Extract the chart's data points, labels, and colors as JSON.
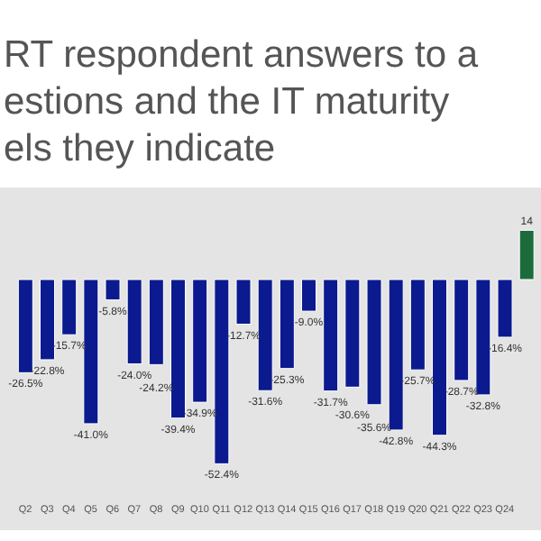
{
  "chart_data": {
    "type": "bar",
    "title": "RT respondent answers to a\nestions and the IT maturity\nels they indicate",
    "categories": [
      "Q2",
      "Q3",
      "Q4",
      "Q5",
      "Q6",
      "Q7",
      "Q8",
      "Q9",
      "Q10",
      "Q11",
      "Q12",
      "Q13",
      "Q14",
      "Q15",
      "Q16",
      "Q17",
      "Q18",
      "Q19",
      "Q20",
      "Q21",
      "Q22",
      "Q23",
      "Q24",
      null
    ],
    "values": [
      -26.5,
      -22.8,
      -15.7,
      -41.0,
      -5.8,
      -24.0,
      -24.2,
      -39.4,
      -34.9,
      -52.4,
      -12.7,
      -31.6,
      -25.3,
      -9.0,
      -31.7,
      -30.6,
      -35.6,
      -42.8,
      -25.7,
      -44.3,
      -28.7,
      -32.8,
      -16.4,
      14
    ],
    "value_labels": [
      "-26.5%",
      "-22.8%",
      "-15.7%",
      "-41.0%",
      "-5.8%",
      "-24.0%",
      "-24.2%",
      "-39.4%",
      "-34.9%",
      "-52.4%",
      "-12.7%",
      "-31.6%",
      "-25.3%",
      "-9.0%",
      "-31.7%",
      "-30.6%",
      "-35.6%",
      "-42.8%",
      "-25.7%",
      "-44.3%",
      "-28.7%",
      "-32.8%",
      "-16.4%",
      "14"
    ],
    "colors": [
      "#0b1a8e",
      "#0b1a8e",
      "#0b1a8e",
      "#0b1a8e",
      "#0b1a8e",
      "#0b1a8e",
      "#0b1a8e",
      "#0b1a8e",
      "#0b1a8e",
      "#0b1a8e",
      "#0b1a8e",
      "#0b1a8e",
      "#0b1a8e",
      "#0b1a8e",
      "#0b1a8e",
      "#0b1a8e",
      "#0b1a8e",
      "#0b1a8e",
      "#0b1a8e",
      "#0b1a8e",
      "#0b1a8e",
      "#0b1a8e",
      "#0b1a8e",
      "#1d6b3c"
    ],
    "tick_labels": "x"
  }
}
